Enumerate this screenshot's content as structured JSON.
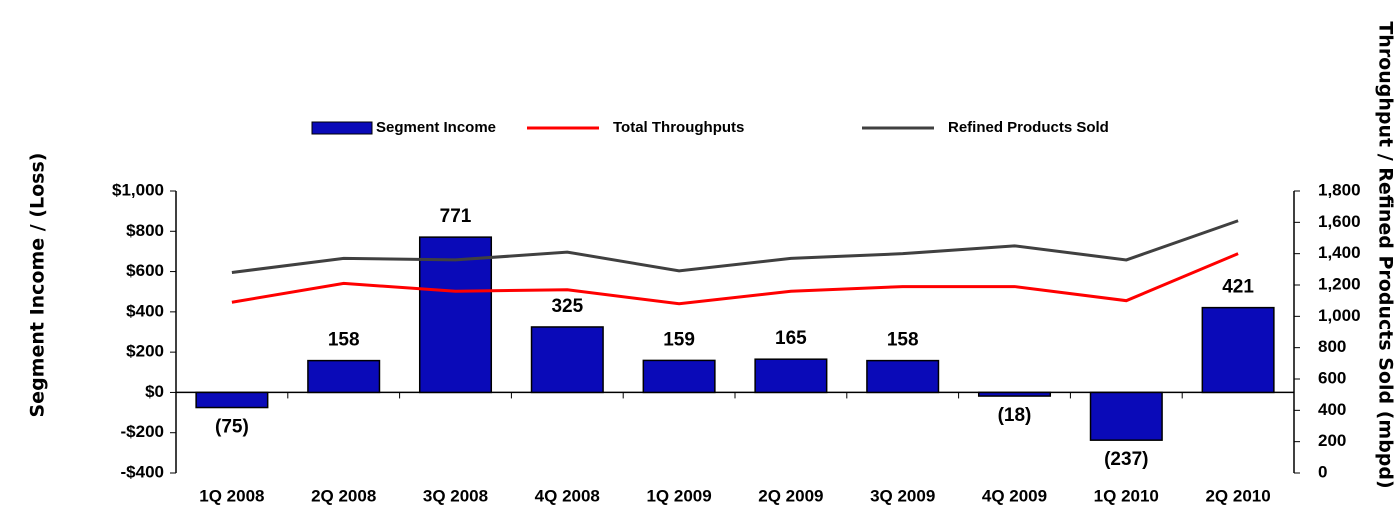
{
  "chart_data": {
    "type": "bar",
    "categories": [
      "1Q 2008",
      "2Q 2008",
      "3Q 2008",
      "4Q 2008",
      "1Q 2009",
      "2Q 2009",
      "3Q 2009",
      "4Q 2009",
      "1Q 2010",
      "2Q 2010"
    ],
    "ylabel": "Segment Income / (Loss)",
    "y2label": "Throughput / Refined Products Sold (mbpd)",
    "ylim": [
      -400,
      1000
    ],
    "yticks": [
      {
        "value": -400,
        "label": "-$400"
      },
      {
        "value": -200,
        "label": "-$200"
      },
      {
        "value": 0,
        "label": "$0"
      },
      {
        "value": 200,
        "label": "$200"
      },
      {
        "value": 400,
        "label": "$400"
      },
      {
        "value": 600,
        "label": "$600"
      },
      {
        "value": 800,
        "label": "$800"
      },
      {
        "value": 1000,
        "label": "$1,000"
      }
    ],
    "y2lim": [
      0,
      1800
    ],
    "y2ticks": [
      0,
      200,
      400,
      600,
      800,
      {
        "value": 1000,
        "label": "1,000"
      },
      {
        "value": 1200,
        "label": "1,200"
      },
      {
        "value": 1400,
        "label": "1,400"
      },
      {
        "value": 1600,
        "label": "1,600"
      },
      {
        "value": 1800,
        "label": "1,800"
      }
    ],
    "legend": "top",
    "series": [
      {
        "name": "Segment Income",
        "type": "bar",
        "color": "#0a0ab8",
        "values": [
          -75,
          158,
          771,
          325,
          159,
          165,
          158,
          -18,
          -237,
          421
        ],
        "value_labels": [
          "(75)",
          "158",
          "771",
          "325",
          "159",
          "165",
          "158",
          "(18)",
          "(237)",
          "421"
        ]
      },
      {
        "name": "Total Throughputs",
        "type": "line",
        "axis": "y2",
        "color": "#ff0000",
        "values": [
          1090,
          1210,
          1160,
          1170,
          1080,
          1160,
          1190,
          1190,
          1100,
          1400
        ]
      },
      {
        "name": "Refined Products Sold",
        "type": "line",
        "axis": "y2",
        "color": "#404040",
        "values": [
          1280,
          1370,
          1360,
          1410,
          1290,
          1370,
          1400,
          1450,
          1360,
          1610
        ]
      }
    ]
  }
}
